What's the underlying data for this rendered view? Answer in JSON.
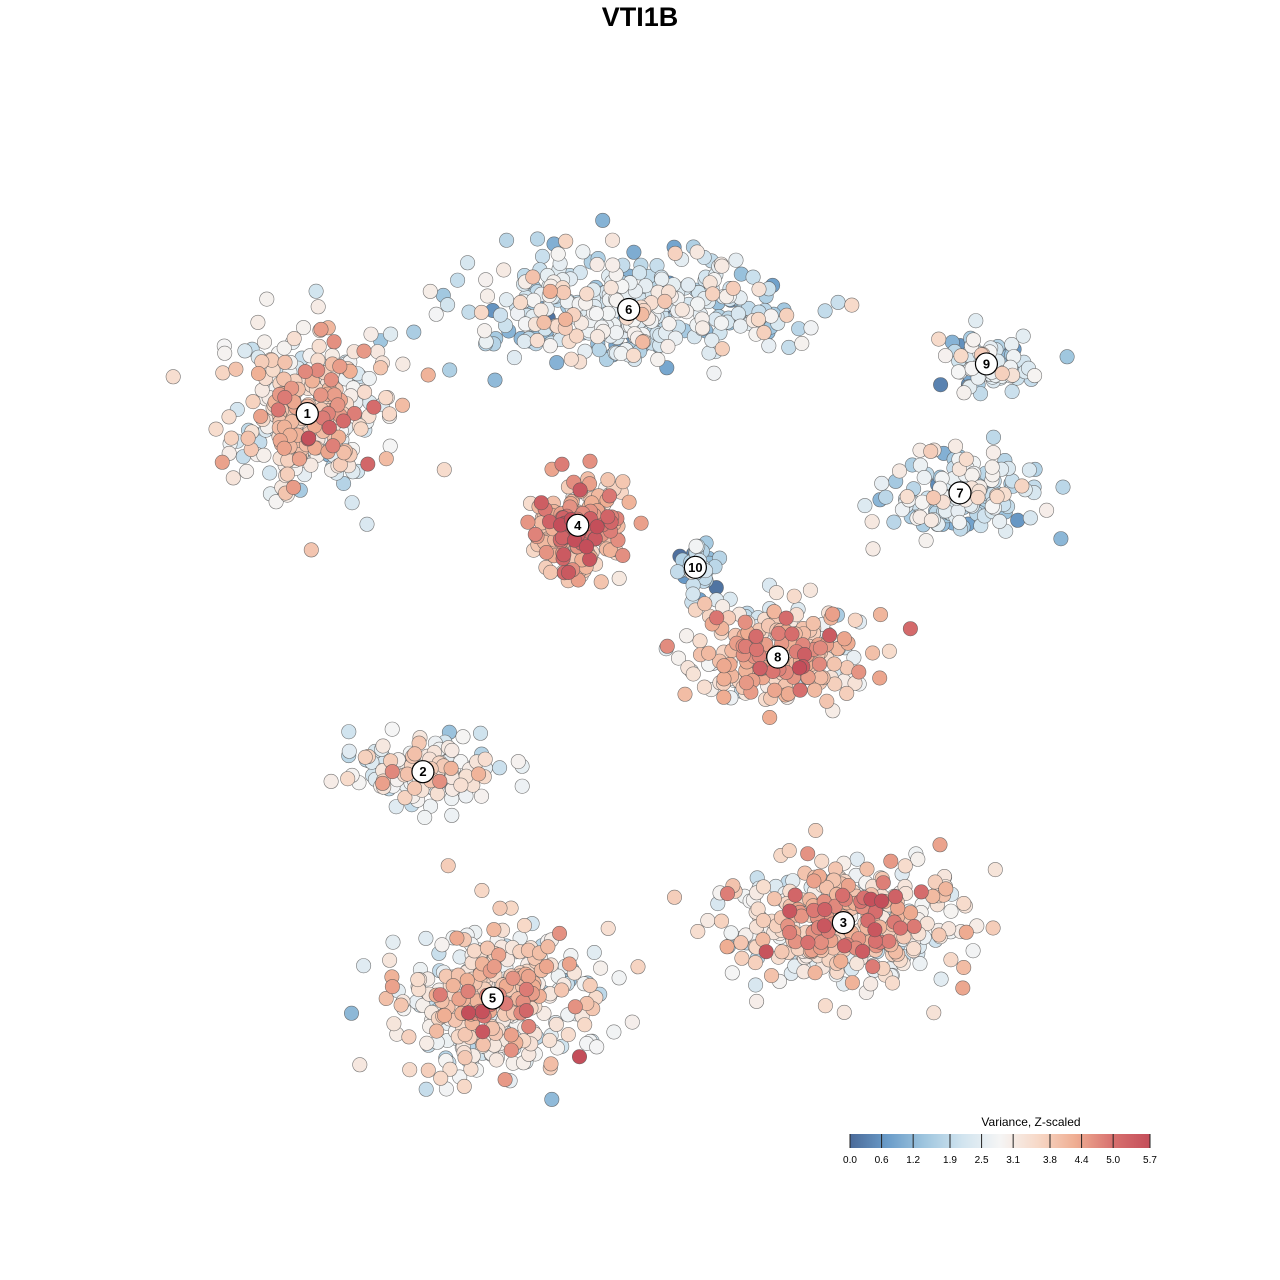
{
  "chart_data": {
    "type": "scatter",
    "title": "VTI1B",
    "x_range": [
      0,
      100
    ],
    "y_range": [
      0,
      100
    ],
    "color_scale": {
      "title": "Variance, Z-scaled",
      "min": 0.0,
      "max": 5.7,
      "ticks": [
        "0.0",
        "0.6",
        "1.2",
        "1.9",
        "2.5",
        "3.1",
        "3.8",
        "4.4",
        "5.0",
        "5.7"
      ],
      "colors": [
        "#4a6a99",
        "#6a9cc9",
        "#9fc6df",
        "#d1e4ef",
        "#f5f5f5",
        "#f7d9c8",
        "#efae93",
        "#d8716f",
        "#c44e5a"
      ]
    },
    "legend_position": "bottom-right",
    "clusters": [
      {
        "label": "1",
        "x": 13.5,
        "y": 72.4,
        "mean": 3.2
      },
      {
        "label": "2",
        "x": 25.3,
        "y": 34.9,
        "mean": 2.8
      },
      {
        "label": "3",
        "x": 68.2,
        "y": 19.1,
        "mean": 3.6
      },
      {
        "label": "4",
        "x": 41.1,
        "y": 60.7,
        "mean": 4.3
      },
      {
        "label": "5",
        "x": 32.4,
        "y": 11.2,
        "mean": 3.3
      },
      {
        "label": "6",
        "x": 46.3,
        "y": 83.3,
        "mean": 2.3
      },
      {
        "label": "7",
        "x": 80.1,
        "y": 64.1,
        "mean": 2.2
      },
      {
        "label": "8",
        "x": 61.5,
        "y": 46.9,
        "mean": 3.8
      },
      {
        "label": "9",
        "x": 82.8,
        "y": 77.6,
        "mean": 2.3
      },
      {
        "label": "10",
        "x": 53.1,
        "y": 56.3,
        "mean": 1.2
      }
    ]
  }
}
